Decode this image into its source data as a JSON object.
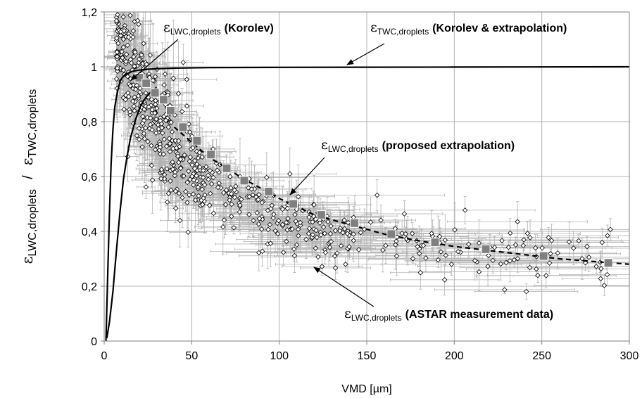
{
  "chart_data": {
    "type": "scatter",
    "title": "",
    "xlabel": "VMD [µm]",
    "ylabel": {
      "part1_symbol": "ε",
      "part1_sub": "LWC,droplets",
      "separator": "/",
      "part2_symbol": "ε",
      "part2_sub": "TWC,droplets"
    },
    "xlim": [
      0,
      300
    ],
    "ylim": [
      0,
      1.2
    ],
    "x_ticks": [
      "0",
      "50",
      "100",
      "150",
      "200",
      "250",
      "300"
    ],
    "y_ticks": [
      "0",
      "0,2",
      "0,4",
      "0,6",
      "0,8",
      "1",
      "1,2"
    ],
    "grid": true,
    "colors": {
      "errorbar": "#b3b3b3",
      "marker_open": "#ffffff",
      "marker_square": "#808080",
      "line": "#000000",
      "grid": "#b3b3b3"
    },
    "series": [
      {
        "type": "line",
        "style": "solid",
        "x": [
          1,
          2,
          3,
          4,
          5,
          6,
          7,
          8,
          9,
          10,
          12,
          14,
          16,
          18,
          20,
          25,
          30,
          40,
          60,
          100,
          200,
          300
        ],
        "y": [
          0.0,
          0.24,
          0.47,
          0.65,
          0.77,
          0.85,
          0.89,
          0.92,
          0.945,
          0.958,
          0.972,
          0.978,
          0.983,
          0.986,
          0.988,
          0.991,
          0.993,
          0.995,
          0.997,
          0.998,
          0.999,
          1.0
        ]
      },
      {
        "type": "line",
        "style": "solid",
        "x": [
          1.5,
          3,
          5,
          7,
          9,
          11,
          13,
          15,
          18,
          21,
          24,
          27,
          30
        ],
        "y": [
          0.01,
          0.07,
          0.18,
          0.33,
          0.47,
          0.59,
          0.67,
          0.74,
          0.81,
          0.86,
          0.89,
          0.91,
          0.925
        ]
      },
      {
        "type": "line",
        "style": "dashed",
        "x": [
          40,
          60,
          80,
          100,
          120,
          140,
          160,
          180,
          200,
          220,
          240,
          260,
          280,
          300
        ],
        "y": [
          0.78,
          0.67,
          0.59,
          0.52,
          0.46,
          0.425,
          0.39,
          0.365,
          0.345,
          0.33,
          0.315,
          0.3,
          0.29,
          0.28
        ]
      },
      {
        "type": "square",
        "x": [
          20,
          24,
          29,
          34,
          38,
          45,
          53,
          61,
          70,
          80,
          94,
          108,
          124,
          143,
          164,
          189,
          218,
          251,
          288
        ],
        "y": [
          0.96,
          0.94,
          0.905,
          0.88,
          0.84,
          0.78,
          0.73,
          0.68,
          0.63,
          0.585,
          0.545,
          0.5,
          0.46,
          0.43,
          0.39,
          0.36,
          0.335,
          0.31,
          0.285
        ]
      },
      {
        "type": "scatter",
        "n_points": 650
      }
    ],
    "annotations": [
      {
        "id": "korolev",
        "symbol": "ε",
        "sub": "LWC,droplets",
        "text": "(Korolev)"
      },
      {
        "id": "twc",
        "symbol": "ε",
        "sub": "TWC,droplets",
        "text": "(Korolev & extrapolation)"
      },
      {
        "id": "proposed",
        "symbol": "ε",
        "sub": "LWC,droplets",
        "text": "(proposed extrapolation)"
      },
      {
        "id": "astar",
        "symbol": "ε",
        "sub": "LWC,droplets",
        "text": "(ASTAR measurement data)"
      }
    ]
  }
}
